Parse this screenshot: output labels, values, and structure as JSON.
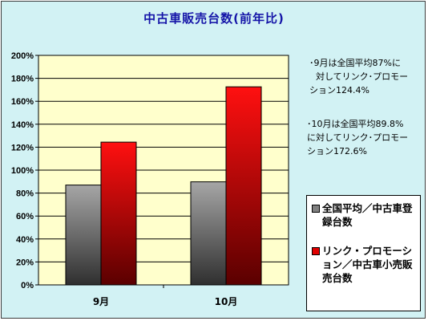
{
  "chart_data": {
    "type": "bar",
    "title": "中古車販売台数(前年比)",
    "categories": [
      "9月",
      "10月"
    ],
    "series": [
      {
        "name": "全国平均／中古車登録台数",
        "values": [
          87,
          89.8
        ],
        "color": "#808080"
      },
      {
        "name": "リンク・プロモーション／中古車小売販売台数",
        "values": [
          124.4,
          172.6
        ],
        "color": "#e00000"
      }
    ],
    "yticks": [
      "0%",
      "20%",
      "40%",
      "60%",
      "80%",
      "100%",
      "120%",
      "140%",
      "160%",
      "180%",
      "200%"
    ],
    "ylim": [
      0,
      200
    ],
    "grid": true,
    "legend_position": "bottom-right"
  },
  "annotations": [
    {
      "line1": "･9月は全国平均87%に",
      "line2": "対してリンク･プロモー",
      "line3": "ション124.4%"
    },
    {
      "line1": "･10月は全国平均89.8%",
      "line2": "に対してリンク･プロモー",
      "line3": "ション172.6%"
    }
  ],
  "colors": {
    "background": "#d2f2f4",
    "plot_area": "#ffffcc",
    "title": "#1515a8"
  }
}
